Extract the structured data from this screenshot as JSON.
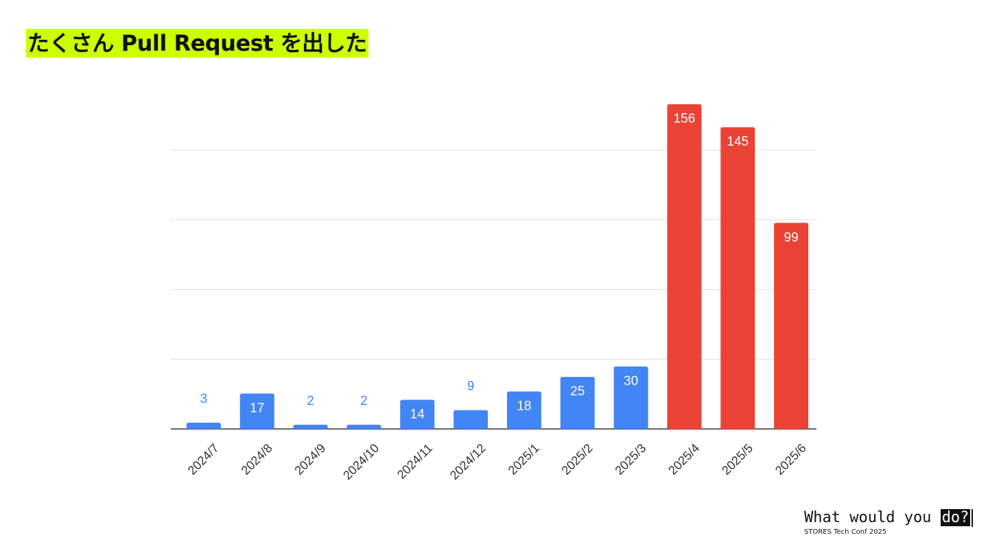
{
  "title": "たくさん Pull Request を出した",
  "chart_data": {
    "type": "bar",
    "categories": [
      "2024/7",
      "2024/8",
      "2024/9",
      "2024/10",
      "2024/11",
      "2024/12",
      "2025/1",
      "2025/2",
      "2025/3",
      "2025/4",
      "2025/5",
      "2025/6"
    ],
    "values": [
      3,
      17,
      2,
      2,
      14,
      9,
      18,
      25,
      30,
      156,
      145,
      99
    ],
    "colors": [
      "#4285f4",
      "#4285f4",
      "#4285f4",
      "#4285f4",
      "#4285f4",
      "#4285f4",
      "#4285f4",
      "#4285f4",
      "#4285f4",
      "#ea4335",
      "#ea4335",
      "#ea4335"
    ],
    "ylim": [
      0,
      160
    ],
    "yticks": [
      0,
      33.5,
      67,
      100.5,
      134
    ],
    "grid": true
  },
  "footer": {
    "tagline": "What would you",
    "tagline_highlight": "do?",
    "event": "STORES Tech Conf 2025"
  }
}
